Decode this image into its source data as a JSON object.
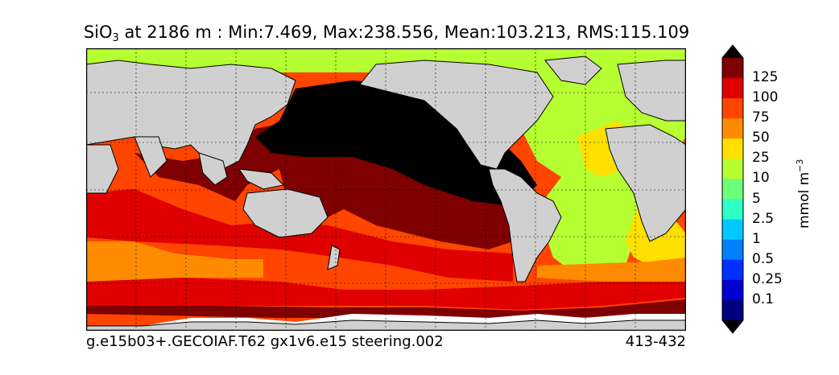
{
  "title": {
    "species": "SiO",
    "species_sub": "3",
    "rest": " at 2186 m : Min:7.469, Max:238.556, Mean:103.213, RMS:115.109"
  },
  "caption": {
    "left": "g.e15b03+.GECOIAF.T62 gx1v6.e15 steering.002",
    "right": "413-432"
  },
  "colorbar": {
    "unit_main": "mmol m",
    "unit_exp": "−3",
    "labels": [
      "125",
      "100",
      "75",
      "50",
      "25",
      "10",
      "5",
      "2.5",
      "1",
      "0.5",
      "0.25",
      "0.1"
    ],
    "colors": [
      "#7f0000",
      "#e00000",
      "#ff4500",
      "#ff8c00",
      "#ffe000",
      "#b5ff32",
      "#6bff7a",
      "#2effc5",
      "#00c8ff",
      "#0080ff",
      "#0030ff",
      "#0000d0",
      "#000080"
    ],
    "over_color": "#000000",
    "under_color": "#000000"
  },
  "map_colors": {
    "land": "#d0d0d0",
    "missing": "#ffffff",
    "above_max": "#000000"
  }
}
